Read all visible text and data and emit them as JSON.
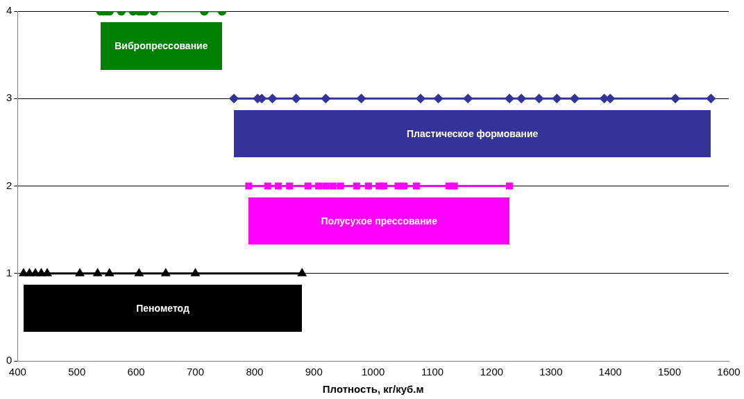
{
  "chart_data": {
    "type": "line",
    "xlabel": "Плотность, кг/куб.м",
    "xlim": [
      400,
      1600
    ],
    "xticks": [
      400,
      500,
      600,
      700,
      800,
      900,
      1000,
      1100,
      1200,
      1300,
      1400,
      1500,
      1600
    ],
    "ylim": [
      0,
      4
    ],
    "yticks": [
      0,
      1,
      2,
      3,
      4
    ],
    "grid": "y",
    "legend": false,
    "line_style": "solid",
    "series": [
      {
        "name": "Пенометод",
        "color": "#000000",
        "marker": "triangle",
        "x": [
          410,
          420,
          430,
          440,
          450,
          505,
          535,
          555,
          605,
          650,
          700,
          880
        ],
        "values": [
          1,
          1,
          1,
          1,
          1,
          1,
          1,
          1,
          1,
          1,
          1,
          1
        ]
      },
      {
        "name": "Полусухое прессование",
        "color": "#ff00ff",
        "marker": "square",
        "x": [
          790,
          822,
          840,
          859,
          890,
          908,
          920,
          932,
          945,
          972,
          992,
          1010,
          1018,
          1042,
          1052,
          1073,
          1128,
          1137,
          1230
        ],
        "values": [
          2,
          2,
          2,
          2,
          2,
          2,
          2,
          2,
          2,
          2,
          2,
          2,
          2,
          2,
          2,
          2,
          2,
          2,
          2
        ]
      },
      {
        "name": "Пластическое формование",
        "color": "#333399",
        "marker": "diamond",
        "x": [
          765,
          805,
          812,
          830,
          870,
          920,
          980,
          1080,
          1110,
          1160,
          1230,
          1250,
          1280,
          1310,
          1340,
          1390,
          1400,
          1510,
          1570
        ],
        "values": [
          3,
          3,
          3,
          3,
          3,
          3,
          3,
          3,
          3,
          3,
          3,
          3,
          3,
          3,
          3,
          3,
          3,
          3,
          3
        ]
      },
      {
        "name": "Вибропрессование",
        "color": "#008000",
        "marker": "circle",
        "x": [
          540,
          545,
          550,
          555,
          575,
          595,
          605,
          610,
          615,
          630,
          715,
          745
        ],
        "values": [
          4,
          4,
          4,
          4,
          4,
          4,
          4,
          4,
          4,
          4,
          4,
          4
        ]
      }
    ]
  }
}
